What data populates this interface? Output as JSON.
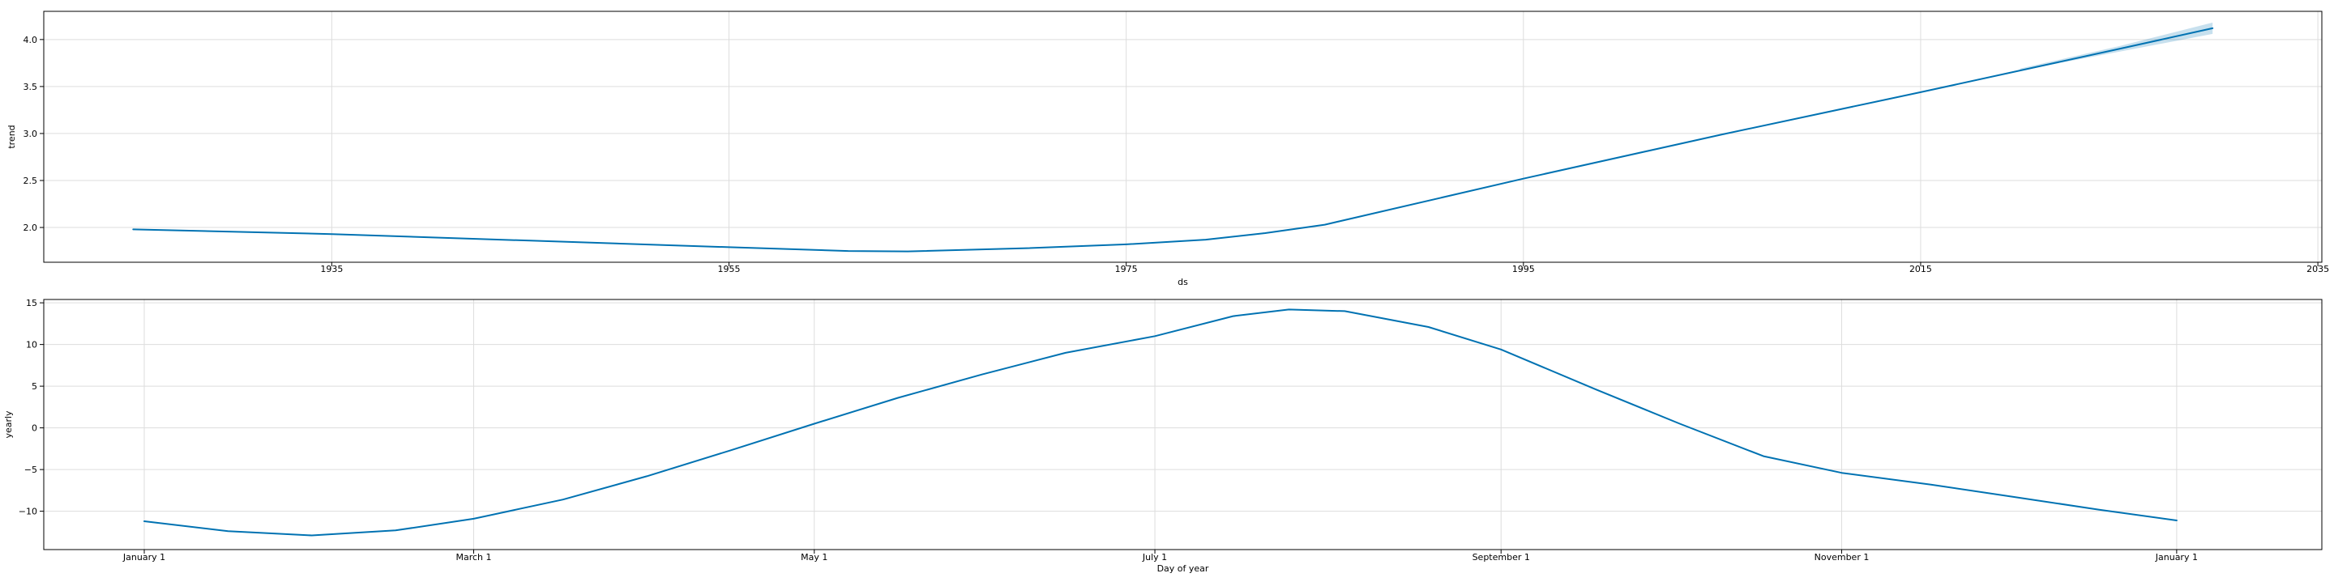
{
  "chart_data": [
    {
      "type": "line",
      "title": "",
      "xlabel": "ds",
      "ylabel": "trend",
      "x_tick_labels": [
        "1935",
        "1955",
        "1975",
        "1995",
        "2015",
        "2035"
      ],
      "x_ticks": [
        1935,
        1955,
        1975,
        1995,
        2015,
        2035
      ],
      "y_tick_labels": [
        "2.0",
        "2.5",
        "3.0",
        "3.5",
        "4.0"
      ],
      "y_ticks": [
        2.0,
        2.5,
        3.0,
        3.5,
        4.0
      ],
      "xlim": [
        1920.5,
        2035.2
      ],
      "ylim": [
        1.63,
        4.3
      ],
      "grid": true,
      "series": [
        {
          "color": "#0072B2",
          "x": [
            1925.0,
            1935.0,
            1945.0,
            1955.0,
            1961.0,
            1964.0,
            1970.0,
            1975.0,
            1979.0,
            1982.0,
            1985.0,
            1995.0,
            2005.0,
            2015.0,
            2025.0,
            2029.7
          ],
          "y": [
            1.98,
            1.93,
            1.86,
            1.79,
            1.75,
            1.745,
            1.78,
            1.82,
            1.87,
            1.94,
            2.03,
            2.52,
            2.99,
            3.44,
            3.9,
            4.12
          ],
          "uncertainty": {
            "color": "#0072B2",
            "x": [
              2020.0,
              2025.0,
              2029.7
            ],
            "lower": [
              3.67,
              3.87,
              4.06
            ],
            "upper": [
              3.69,
              3.93,
              4.18
            ]
          }
        }
      ]
    },
    {
      "type": "line",
      "title": "",
      "xlabel": "Day of year",
      "ylabel": "yearly",
      "x_tick_labels": [
        "January 1",
        "March 1",
        "May 1",
        "July 1",
        "September 1",
        "November 1",
        "January 1"
      ],
      "x_ticks": [
        0,
        59,
        120,
        181,
        243,
        304,
        364
      ],
      "y_tick_labels": [
        "−10",
        "−5",
        "0",
        "5",
        "10",
        "15"
      ],
      "y_ticks": [
        -10,
        -5,
        0,
        5,
        10,
        15
      ],
      "xlim": [
        -18,
        390
      ],
      "ylim": [
        -14.6,
        15.4
      ],
      "grid": true,
      "series": [
        {
          "color": "#0072B2",
          "x": [
            0,
            15,
            30,
            45,
            59,
            75,
            90,
            105,
            120,
            135,
            150,
            165,
            181,
            195,
            205,
            215,
            230,
            243,
            260,
            275,
            290,
            304,
            320,
            335,
            350,
            364
          ],
          "y": [
            -11.2,
            -12.4,
            -12.9,
            -12.3,
            -10.9,
            -8.6,
            -5.8,
            -2.7,
            0.5,
            3.6,
            6.4,
            9.0,
            11.0,
            13.4,
            14.2,
            14.0,
            12.1,
            9.4,
            4.6,
            0.5,
            -3.4,
            -5.4,
            -6.8,
            -8.3,
            -9.8,
            -11.1
          ]
        }
      ]
    }
  ]
}
